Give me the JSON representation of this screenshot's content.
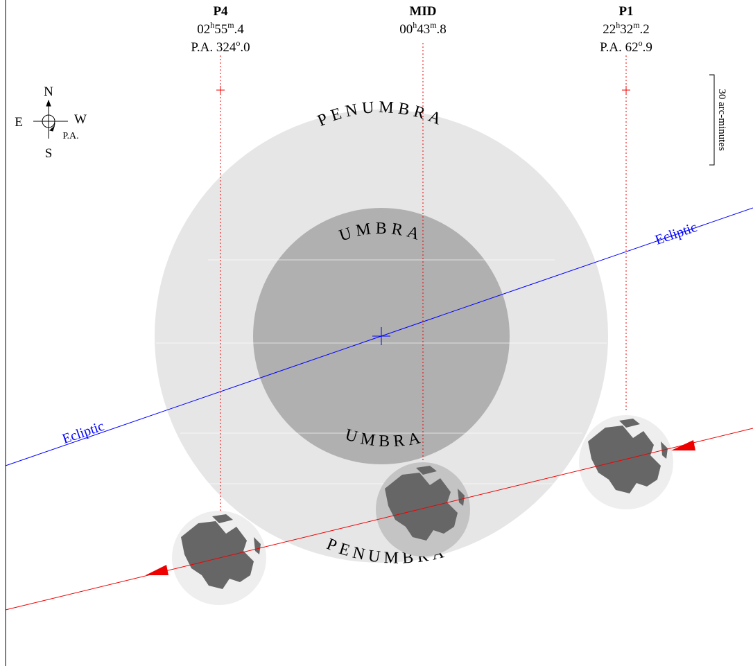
{
  "contacts": [
    {
      "name": "P4",
      "time": [
        "02",
        "h",
        "55",
        "m",
        ".4"
      ],
      "pa": [
        "P.A. 324",
        "o",
        ".0"
      ]
    },
    {
      "name": "MID",
      "time": [
        "00",
        "h",
        "43",
        "m",
        ".8"
      ]
    },
    {
      "name": "P1",
      "time": [
        "22",
        "h",
        "32",
        "m",
        ".2"
      ],
      "pa": [
        "P.A. 62",
        "o",
        ".9"
      ]
    }
  ],
  "compass": {
    "north": "N",
    "south": "S",
    "east": "E",
    "west": "W",
    "pa": "P.A."
  },
  "scale": "30 arc-minutes",
  "shadows": {
    "penumbra_top": "PENUMBRA",
    "penumbra_bottom": "PENUMBRA",
    "umbra_top": "UMBRA",
    "umbra_bottom": "UMBRA"
  },
  "ecliptic_labels": [
    "Ecliptic",
    "Ecliptic"
  ]
}
